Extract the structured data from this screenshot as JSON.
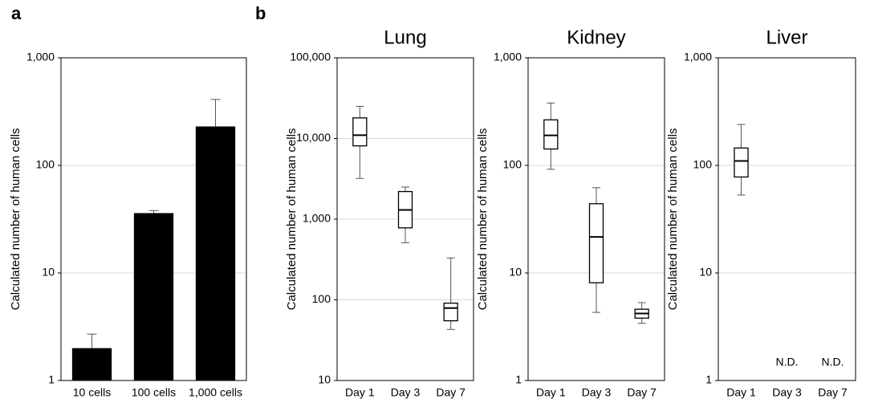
{
  "chart_data": [
    {
      "type": "bar",
      "panel": "a",
      "ylabel": "Calculated number of human cells",
      "log": true,
      "categories": [
        "10 cells",
        "100 cells",
        "1,000 cells"
      ],
      "values": [
        2,
        36,
        230
      ],
      "errors": [
        0.7,
        2,
        180
      ],
      "color": "#000000",
      "ylim": [
        1,
        1000
      ],
      "yticks": [
        1,
        10,
        100,
        {
          "value": 1000,
          "label": "1,000"
        }
      ],
      "grid": true
    },
    {
      "type": "box",
      "panel": "b",
      "title": "Lung",
      "ylabel": "Calculated number of human cells",
      "log": true,
      "categories": [
        "Day 1",
        "Day 3",
        "Day 7"
      ],
      "boxes": [
        {
          "min": 3200,
          "q1": 8100,
          "median": 11000,
          "q3": 18000,
          "max": 25000
        },
        {
          "min": 510,
          "q1": 780,
          "median": 1300,
          "q3": 2200,
          "max": 2500
        },
        {
          "min": 43,
          "q1": 55,
          "median": 79,
          "q3": 91,
          "max": 330
        }
      ],
      "ylim": [
        10,
        100000
      ],
      "yticks": [
        10,
        100,
        {
          "value": 1000,
          "label": "1,000"
        },
        {
          "value": 10000,
          "label": "10,000"
        },
        {
          "value": 100000,
          "label": "100,000"
        }
      ],
      "grid": true
    },
    {
      "type": "box",
      "title": "Kidney",
      "ylabel": "Calculated number of human cells",
      "log": true,
      "categories": [
        "Day 1",
        "Day 3",
        "Day 7"
      ],
      "boxes": [
        {
          "min": 92,
          "q1": 142,
          "median": 190,
          "q3": 265,
          "max": 380
        },
        {
          "min": 4.3,
          "q1": 8.1,
          "median": 21.6,
          "q3": 44,
          "max": 62
        },
        {
          "min": 3.4,
          "q1": 3.8,
          "median": 4.2,
          "q3": 4.6,
          "max": 5.3
        }
      ],
      "ylim": [
        1,
        1000
      ],
      "yticks": [
        1,
        10,
        100,
        {
          "value": 1000,
          "label": "1,000"
        }
      ],
      "grid": true
    },
    {
      "type": "box",
      "title": "Liver",
      "ylabel": "Calculated number of human cells",
      "log": true,
      "categories": [
        "Day 1",
        "Day 3",
        "Day 7"
      ],
      "boxes": [
        {
          "min": 53,
          "q1": 78,
          "median": 110,
          "q3": 145,
          "max": 240
        },
        null,
        null
      ],
      "box_labels": [
        null,
        "N.D.",
        "N.D."
      ],
      "ylim": [
        1,
        1000
      ],
      "yticks": [
        1,
        10,
        100,
        {
          "value": 1000,
          "label": "1,000"
        }
      ],
      "grid": true
    }
  ]
}
